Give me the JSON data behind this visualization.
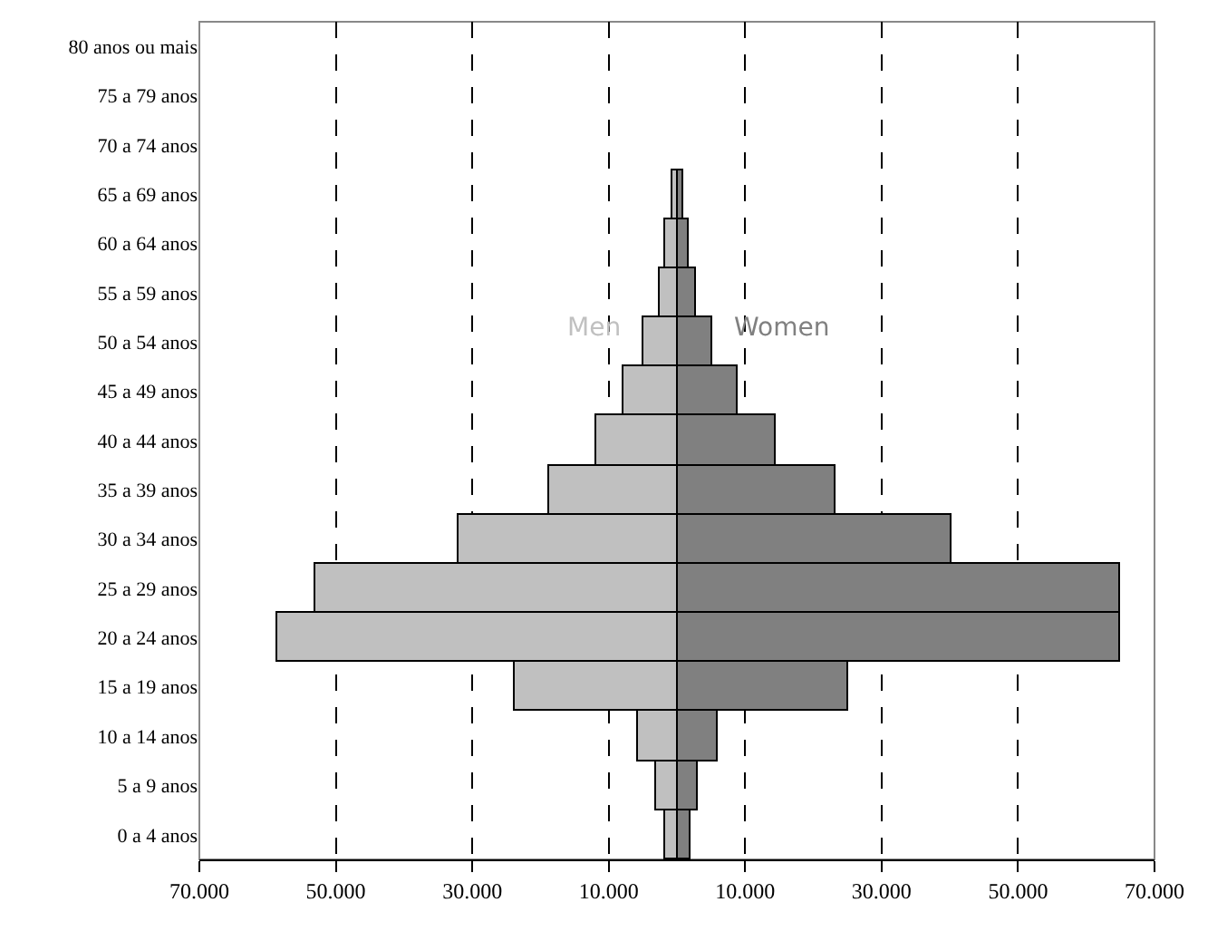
{
  "chart_data": {
    "type": "bar",
    "orientation": "horizontal",
    "categories": [
      "80 anos ou mais",
      "75 a 79 anos",
      "70 a 74 anos",
      "65 a 69 anos",
      "60 a 64 anos",
      "55 a 59 anos",
      "50 a 54 anos",
      "45 a 49 anos",
      "40 a 44 anos",
      "35 a 39 anos",
      "30 a 34 anos",
      "25 a 29 anos",
      "20 a 24 anos",
      "15 a 19 anos",
      "10 a 14 anos",
      "5 a 9 anos",
      "0 a 4 anos"
    ],
    "series": [
      {
        "name": "Men",
        "color": "#c0c0c0",
        "values": [
          null,
          null,
          null,
          -700,
          -1600,
          -2600,
          -4900,
          -7900,
          -11900,
          -18600,
          -31900,
          -53100,
          -58500,
          -23900,
          -5600,
          -3000,
          -1700
        ]
      },
      {
        "name": "Women",
        "color": "#808080",
        "values": [
          null,
          null,
          null,
          800,
          1600,
          2700,
          5300,
          9000,
          14600,
          23300,
          40300,
          64900,
          64900,
          25000,
          6100,
          3100,
          2100
        ]
      }
    ],
    "xlim": [
      -70000,
      70000
    ],
    "xticks": [
      {
        "value": -70000,
        "label": "70.000"
      },
      {
        "value": -50000,
        "label": "50.000"
      },
      {
        "value": -30000,
        "label": "30.000"
      },
      {
        "value": -10000,
        "label": "10.000"
      },
      {
        "value": 10000,
        "label": "10.000"
      },
      {
        "value": 30000,
        "label": "30.000"
      },
      {
        "value": 50000,
        "label": "50.000"
      },
      {
        "value": 70000,
        "label": "70.000"
      }
    ],
    "stacked": true,
    "grid": "x",
    "legend": false
  }
}
